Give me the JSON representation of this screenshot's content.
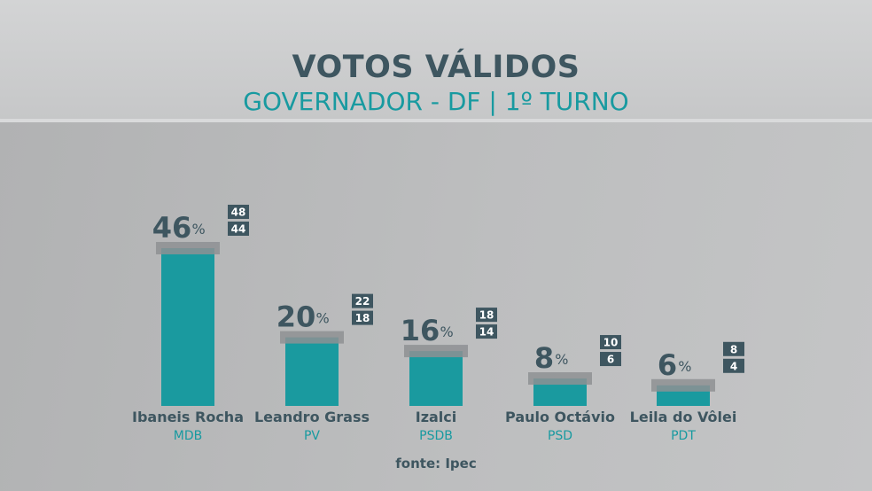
{
  "header": {
    "title": "VOTOS VÁLIDOS",
    "subtitle": "GOVERNADOR - DF | 1º TURNO"
  },
  "source": "fonte: Ipec",
  "colors": {
    "bar": "#1a9a9f",
    "margin_band": "#8e9193",
    "dark_text": "#3e5660",
    "party_text": "#189aa0",
    "range_box": "#3e5660",
    "range_text": "#ffffff"
  },
  "chart_data": {
    "type": "bar",
    "ylim": [
      0,
      50
    ],
    "categories": [
      "Ibaneis Rocha",
      "Leandro Grass",
      "Izalci",
      "Paulo Octávio",
      "Leila do Vôlei"
    ],
    "parties": [
      "MDB",
      "PV",
      "PSDB",
      "PSD",
      "PDT"
    ],
    "values": [
      46,
      20,
      16,
      8,
      6
    ],
    "value_unit": "%",
    "range_high": [
      48,
      22,
      18,
      10,
      8
    ],
    "range_low": [
      44,
      18,
      14,
      6,
      4
    ]
  }
}
